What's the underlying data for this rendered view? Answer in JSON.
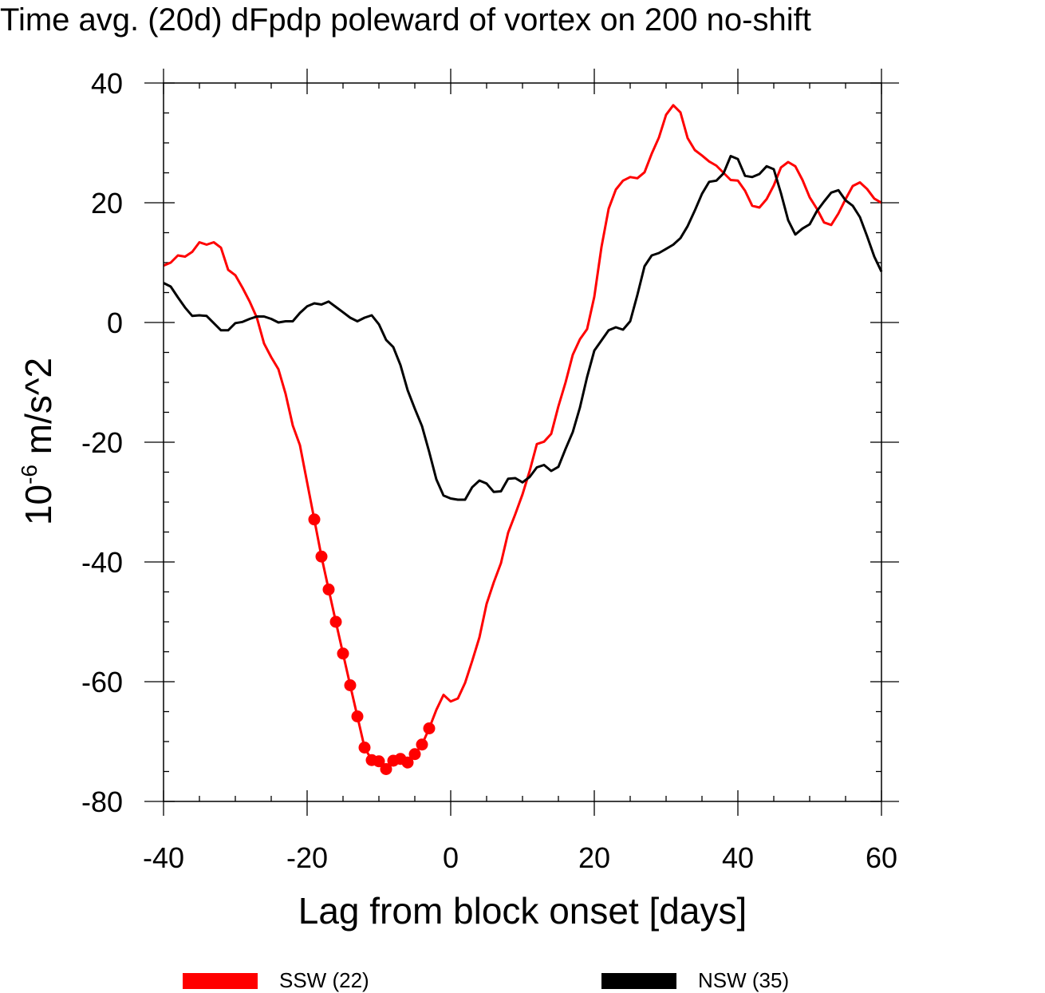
{
  "chart_data": {
    "type": "line",
    "title": "Time avg. (20d) dFpdp poleward of vortex on 200 no-shift",
    "xlabel": "Lag from block onset [days]",
    "ylabel": {
      "base": "10",
      "exponent": "-6",
      "unit": " m/s^2"
    },
    "xlim": [
      -40,
      60
    ],
    "ylim": [
      -80,
      40
    ],
    "x_ticks": [
      -40,
      -20,
      0,
      20,
      40,
      60
    ],
    "y_ticks": [
      40,
      20,
      0,
      -20,
      -40,
      -60,
      -80
    ],
    "x_tick_labels": [
      "-40",
      "-20",
      "0",
      "20",
      "40",
      "60"
    ],
    "y_tick_labels": [
      "40",
      "20",
      "0",
      "-20",
      "-40",
      "-60",
      "-80"
    ],
    "x_minor_step": 5,
    "y_minor_step": 5,
    "legend_position": "bottom",
    "series": [
      {
        "name": "SSW (22)",
        "color": "#ff0000",
        "x": [
          -40,
          -39,
          -38,
          -37,
          -36,
          -35,
          -34,
          -33,
          -32,
          -31,
          -30,
          -29,
          -28,
          -27,
          -26,
          -25,
          -24,
          -23,
          -22,
          -21,
          -20,
          -19,
          -18,
          -17,
          -16,
          -15,
          -14,
          -13,
          -12,
          -11,
          -10,
          -9,
          -8,
          -7,
          -6,
          -5,
          -4,
          -3,
          -2,
          -1,
          0,
          1,
          2,
          3,
          4,
          5,
          6,
          7,
          8,
          9,
          10,
          11,
          12,
          13,
          14,
          15,
          16,
          17,
          18,
          19,
          20,
          21,
          22,
          23,
          24,
          25,
          26,
          27,
          28,
          29,
          30,
          31,
          32,
          33,
          34,
          35,
          36,
          37,
          38,
          39,
          40,
          41,
          42,
          43,
          44,
          45,
          46,
          47,
          48,
          49,
          50,
          51,
          52,
          53,
          54,
          55,
          56,
          57,
          58,
          59,
          60
        ],
        "values": [
          9.5,
          10,
          11.2,
          11,
          11.8,
          13.4,
          13,
          13.4,
          12.5,
          8.8,
          7.9,
          5.8,
          3.5,
          0.8,
          -3.5,
          -5.8,
          -7.8,
          -11.9,
          -17.2,
          -20.5,
          -26.7,
          -32.9,
          -39.1,
          -44.6,
          -50,
          -55.3,
          -60.6,
          -65.8,
          -71,
          -73.1,
          -73.3,
          -74.6,
          -73.2,
          -72.9,
          -73.5,
          -72.1,
          -70.5,
          -67.8,
          -64.7,
          -62.2,
          -63.3,
          -62.8,
          -60.2,
          -56.5,
          -52.6,
          -47,
          -43.4,
          -40.2,
          -35.1,
          -32,
          -28.7,
          -24.8,
          -20.3,
          -19.9,
          -18.6,
          -14,
          -10,
          -5.4,
          -2.8,
          -1.1,
          4.3,
          12.6,
          19,
          22.2,
          23.7,
          24.3,
          24.1,
          25.1,
          28.2,
          30.9,
          34.7,
          36.3,
          35.1,
          30.8,
          28.8,
          27.9,
          26.9,
          26.2,
          25,
          23.8,
          23.7,
          22,
          19.5,
          19.2,
          20.6,
          22.9,
          25.9,
          26.8,
          26.1,
          23.8,
          20.9,
          19,
          16.7,
          16.3,
          18.2,
          20.6,
          22.8,
          23.4,
          22.3,
          20.7,
          20
        ]
      },
      {
        "name": "NSW (35)",
        "color": "#000000",
        "x": [
          -40,
          -39,
          -38,
          -37,
          -36,
          -35,
          -34,
          -33,
          -32,
          -31,
          -30,
          -29,
          -28,
          -27,
          -26,
          -25,
          -24,
          -23,
          -22,
          -21,
          -20,
          -19,
          -18,
          -17,
          -16,
          -15,
          -14,
          -13,
          -12,
          -11,
          -10,
          -9,
          -8,
          -7,
          -6,
          -5,
          -4,
          -3,
          -2,
          -1,
          0,
          1,
          2,
          3,
          4,
          5,
          6,
          7,
          8,
          9,
          10,
          11,
          12,
          13,
          14,
          15,
          16,
          17,
          18,
          19,
          20,
          21,
          22,
          23,
          24,
          25,
          26,
          27,
          28,
          29,
          30,
          31,
          32,
          33,
          34,
          35,
          36,
          37,
          38,
          39,
          40,
          41,
          42,
          43,
          44,
          45,
          46,
          47,
          48,
          49,
          50,
          51,
          52,
          53,
          54,
          55,
          56,
          57,
          58,
          59,
          60
        ],
        "values": [
          6.6,
          6,
          4.2,
          2.5,
          1.1,
          1.2,
          1.1,
          -0.1,
          -1.3,
          -1.3,
          -0.1,
          0.1,
          0.6,
          1,
          1,
          0.6,
          0,
          0.2,
          0.2,
          1.6,
          2.7,
          3.2,
          3,
          3.5,
          2.6,
          1.7,
          0.8,
          0.2,
          0.8,
          1.2,
          -0.3,
          -2.9,
          -4.1,
          -7.1,
          -11.3,
          -14.4,
          -17.3,
          -21.6,
          -26.2,
          -28.9,
          -29.4,
          -29.6,
          -29.6,
          -27.5,
          -26.4,
          -26.9,
          -28.3,
          -28.2,
          -26.1,
          -26,
          -26.7,
          -25.8,
          -24.2,
          -23.8,
          -24.8,
          -24.1,
          -21.1,
          -18.3,
          -14.2,
          -9.1,
          -4.7,
          -3,
          -1.3,
          -0.8,
          -1.2,
          0.2,
          4.6,
          9.4,
          11.2,
          11.6,
          12.3,
          13,
          14.1,
          16.1,
          18.7,
          21.5,
          23.5,
          23.7,
          24.9,
          27.8,
          27.3,
          24.5,
          24.3,
          24.8,
          26.1,
          25.6,
          21.6,
          17.1,
          14.7,
          15.7,
          16.4,
          18.6,
          20.2,
          21.7,
          22.1,
          20.4,
          19.5,
          17.6,
          14.4,
          11,
          8.5
        ]
      }
    ],
    "markers": {
      "series": "SSW (22)",
      "x": [
        -19,
        -18,
        -17,
        -16,
        -15,
        -14,
        -13,
        -12,
        -11,
        -10,
        -9,
        -8,
        -7,
        -6,
        -5,
        -4,
        -3
      ],
      "values": [
        -32.9,
        -39.1,
        -44.6,
        -50,
        -55.3,
        -60.6,
        -65.8,
        -71,
        -73.1,
        -73.3,
        -74.6,
        -73.2,
        -72.9,
        -73.5,
        -72.1,
        -70.5,
        -67.8
      ]
    }
  }
}
